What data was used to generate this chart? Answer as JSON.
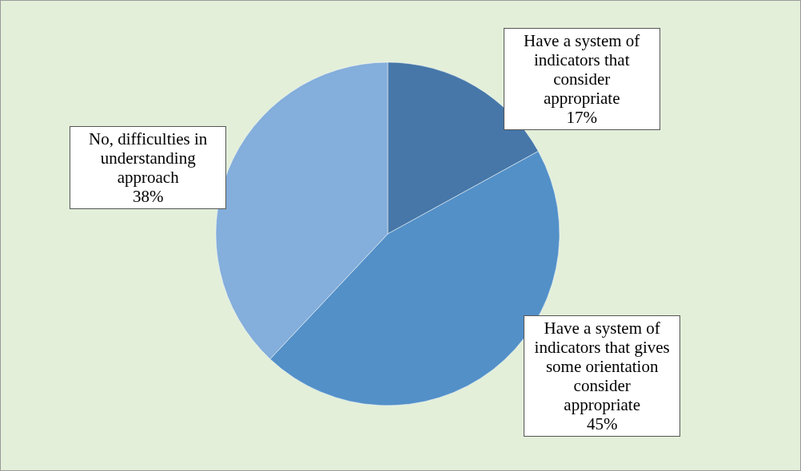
{
  "chart_data": {
    "type": "pie",
    "categories": [
      "Have a system of indicators that consider appropriate",
      "Have a system of indicators that gives some orientation consider appropriate",
      "No, difficulties in understanding approach"
    ],
    "values": [
      17,
      45,
      38
    ],
    "value_labels": [
      "17%",
      "45%",
      "38%"
    ],
    "colors": [
      "#4677a8",
      "#5390c8",
      "#84aedb"
    ]
  }
}
